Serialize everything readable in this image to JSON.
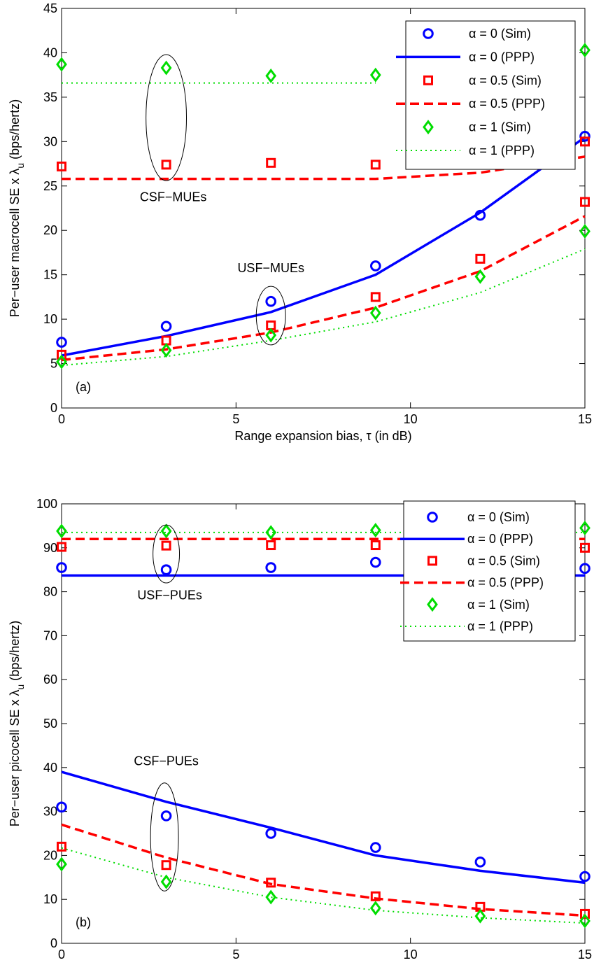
{
  "chart_data": [
    {
      "type": "line",
      "panel_label": "(a)",
      "xlabel": "Range expansion bias, τ (in dB)",
      "ylabel": "Per−user macrocell SE x λ",
      "ylabel_subscript": "u",
      "ylabel_suffix": " (bps/hertz)",
      "xlim": [
        0,
        15
      ],
      "ylim": [
        0,
        45
      ],
      "xticks": [
        0,
        5,
        10,
        15
      ],
      "yticks": [
        0,
        5,
        10,
        15,
        20,
        25,
        30,
        35,
        40,
        45
      ],
      "grid": false,
      "legend_position": "top-right",
      "x": [
        0,
        3,
        6,
        9,
        12,
        15
      ],
      "series": [
        {
          "name": "α = 0 (Sim)",
          "style": "marker-circle",
          "color": "#0000ff",
          "values": [
            7.4,
            9.2,
            12.0,
            16.0,
            21.7,
            30.6
          ]
        },
        {
          "name": "α = 0 (PPP)",
          "style": "solid",
          "color": "#0000ff",
          "values": [
            5.9,
            8.1,
            10.8,
            15.0,
            22.0,
            30.5
          ]
        },
        {
          "name": "α = 0.5 (Sim)",
          "style": "marker-square",
          "color": "#ff0000",
          "values": [
            6.0,
            7.6,
            9.3,
            12.5,
            16.8,
            23.2
          ]
        },
        {
          "name": "α = 0.5 (PPP)",
          "style": "dashed",
          "color": "#ff0000",
          "values": [
            5.4,
            6.6,
            8.5,
            11.3,
            15.4,
            21.6
          ]
        },
        {
          "name": "α = 1 (Sim)",
          "style": "marker-diamond",
          "color": "#00dd00",
          "values": [
            5.2,
            6.5,
            8.2,
            10.7,
            14.8,
            19.9
          ]
        },
        {
          "name": "α = 1 (PPP)",
          "style": "dotted",
          "color": "#00dd00",
          "values": [
            4.8,
            5.8,
            7.6,
            9.7,
            13.0,
            17.9
          ]
        },
        {
          "name": "",
          "style": "marker-square",
          "color": "#ff0000",
          "group": "CSF-MUEs",
          "values": [
            27.2,
            27.4,
            27.6,
            27.4,
            null,
            30.0
          ]
        },
        {
          "name": "",
          "style": "dashed",
          "color": "#ff0000",
          "group": "CSF-MUEs",
          "values": [
            25.8,
            25.8,
            25.8,
            25.8,
            26.5,
            28.3
          ]
        },
        {
          "name": "",
          "style": "marker-diamond",
          "color": "#00dd00",
          "group": "CSF-MUEs",
          "values": [
            38.7,
            38.3,
            37.4,
            37.5,
            null,
            40.3
          ]
        },
        {
          "name": "",
          "style": "dotted",
          "color": "#00dd00",
          "group": "CSF-MUEs",
          "values": [
            36.6,
            36.6,
            36.6,
            36.6,
            null,
            null
          ]
        }
      ],
      "annotations": [
        {
          "text": "CSF−MUEs",
          "x": 3.2,
          "y": 23.3
        },
        {
          "text": "USF−MUEs",
          "x": 6.0,
          "y": 15.3
        }
      ],
      "ellipses": [
        {
          "cx": 3.0,
          "cy": 32.7,
          "rx": 0.58,
          "ry": 7.1
        },
        {
          "cx": 6.0,
          "cy": 10.4,
          "rx": 0.42,
          "ry": 3.3
        }
      ]
    },
    {
      "type": "line",
      "panel_label": "(b)",
      "xlabel": "Range expansion bias, τ (in dB)",
      "ylabel": "Per−user picocell SE x λ",
      "ylabel_subscript": "u",
      "ylabel_suffix": " (bps/hertz)",
      "xlim": [
        0,
        15
      ],
      "ylim": [
        0,
        100
      ],
      "xticks": [
        0,
        5,
        10,
        15
      ],
      "yticks": [
        0,
        10,
        20,
        30,
        40,
        50,
        60,
        70,
        80,
        90,
        100
      ],
      "grid": false,
      "legend_position": "right",
      "x": [
        0,
        3,
        6,
        9,
        12,
        15
      ],
      "series": [
        {
          "name": "α = 0 (Sim)",
          "style": "marker-circle",
          "color": "#0000ff",
          "values": [
            31.0,
            29.0,
            25.0,
            21.8,
            18.5,
            15.2
          ]
        },
        {
          "name": "α = 0 (PPP)",
          "style": "solid",
          "color": "#0000ff",
          "values": [
            39.0,
            32.2,
            26.3,
            20.0,
            16.5,
            13.8
          ]
        },
        {
          "name": "α = 0.5 (Sim)",
          "style": "marker-square",
          "color": "#ff0000",
          "values": [
            22.0,
            17.8,
            13.8,
            10.7,
            8.3,
            6.7
          ]
        },
        {
          "name": "α = 0.5 (PPP)",
          "style": "dashed",
          "color": "#ff0000",
          "values": [
            27.0,
            19.5,
            13.5,
            10.2,
            7.8,
            6.3
          ]
        },
        {
          "name": "α = 1 (Sim)",
          "style": "marker-diamond",
          "color": "#00dd00",
          "values": [
            18.0,
            14.0,
            10.5,
            8.0,
            6.2,
            5.1
          ]
        },
        {
          "name": "α = 1 (PPP)",
          "style": "dotted",
          "color": "#00dd00",
          "values": [
            21.7,
            15.0,
            10.5,
            7.5,
            5.8,
            4.6
          ]
        },
        {
          "name": "",
          "style": "marker-circle",
          "color": "#0000ff",
          "group": "USF-PUEs",
          "values": [
            85.5,
            85.0,
            85.5,
            86.7,
            86.5,
            85.3
          ]
        },
        {
          "name": "",
          "style": "solid",
          "color": "#0000ff",
          "group": "USF-PUEs",
          "values": [
            83.7,
            83.7,
            83.7,
            83.7,
            83.7,
            83.7
          ]
        },
        {
          "name": "",
          "style": "marker-square",
          "color": "#ff0000",
          "group": "USF-PUEs",
          "values": [
            90.2,
            90.5,
            90.6,
            90.6,
            90.0,
            90.0
          ]
        },
        {
          "name": "",
          "style": "dashed",
          "color": "#ff0000",
          "group": "USF-PUEs",
          "values": [
            92.0,
            92.0,
            92.0,
            92.0,
            92.0,
            92.0
          ]
        },
        {
          "name": "",
          "style": "marker-diamond",
          "color": "#00dd00",
          "group": "USF-PUEs",
          "values": [
            93.8,
            93.8,
            93.5,
            94.0,
            93.6,
            94.5
          ]
        },
        {
          "name": "",
          "style": "dotted",
          "color": "#00dd00",
          "group": "USF-PUEs",
          "values": [
            93.5,
            93.5,
            93.5,
            93.5,
            93.5,
            93.5
          ]
        }
      ],
      "annotations": [
        {
          "text": "USF−PUEs",
          "x": 3.1,
          "y": 78.3
        },
        {
          "text": "CSF−PUEs",
          "x": 3.0,
          "y": 40.5
        }
      ],
      "ellipses": [
        {
          "cx": 3.0,
          "cy": 88.6,
          "rx": 0.38,
          "ry": 6.6
        },
        {
          "cx": 2.95,
          "cy": 24.2,
          "rx": 0.4,
          "ry": 12.3
        }
      ]
    }
  ]
}
